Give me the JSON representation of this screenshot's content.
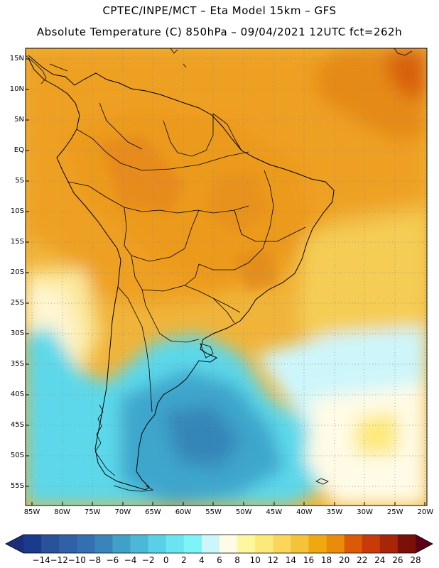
{
  "header": {
    "line1": "CPTEC/INPE/MCT –  Eta Model 15km – GFS",
    "line2": "Absolute Temperature (C) 850hPa – 09/04/2021 12UTC fct=262h"
  },
  "axes": {
    "lat_labels": [
      "15N",
      "10N",
      "5N",
      "EQ",
      "5S",
      "10S",
      "15S",
      "20S",
      "25S",
      "30S",
      "35S",
      "40S",
      "45S",
      "50S",
      "55S"
    ],
    "lon_labels": [
      "85W",
      "80W",
      "75W",
      "70W",
      "65W",
      "60W",
      "55W",
      "50W",
      "45W",
      "40W",
      "35W",
      "30W",
      "25W",
      "20W"
    ]
  },
  "colorbar": {
    "labels": [
      "-14",
      "-12",
      "-10",
      "-8",
      "-6",
      "-4",
      "-2",
      "0",
      "2",
      "4",
      "6",
      "8",
      "10",
      "12",
      "14",
      "16",
      "18",
      "20",
      "22",
      "24",
      "26",
      "28"
    ],
    "colors": [
      "#1a3a8c",
      "#2a5298",
      "#3060a8",
      "#3470b0",
      "#3a84bc",
      "#40a0c8",
      "#4cb8d8",
      "#5ad0e8",
      "#6ae4f0",
      "#7df4f8",
      "#cdf6fb",
      "#fffbe6",
      "#fff6a0",
      "#fde97a",
      "#fad75a",
      "#f5c33a",
      "#f0a810",
      "#ea8c0a",
      "#dc5a05",
      "#c83a08",
      "#a82608",
      "#7a1008"
    ],
    "end_low": "#1c2e7a",
    "end_high": "#5a0018"
  }
}
